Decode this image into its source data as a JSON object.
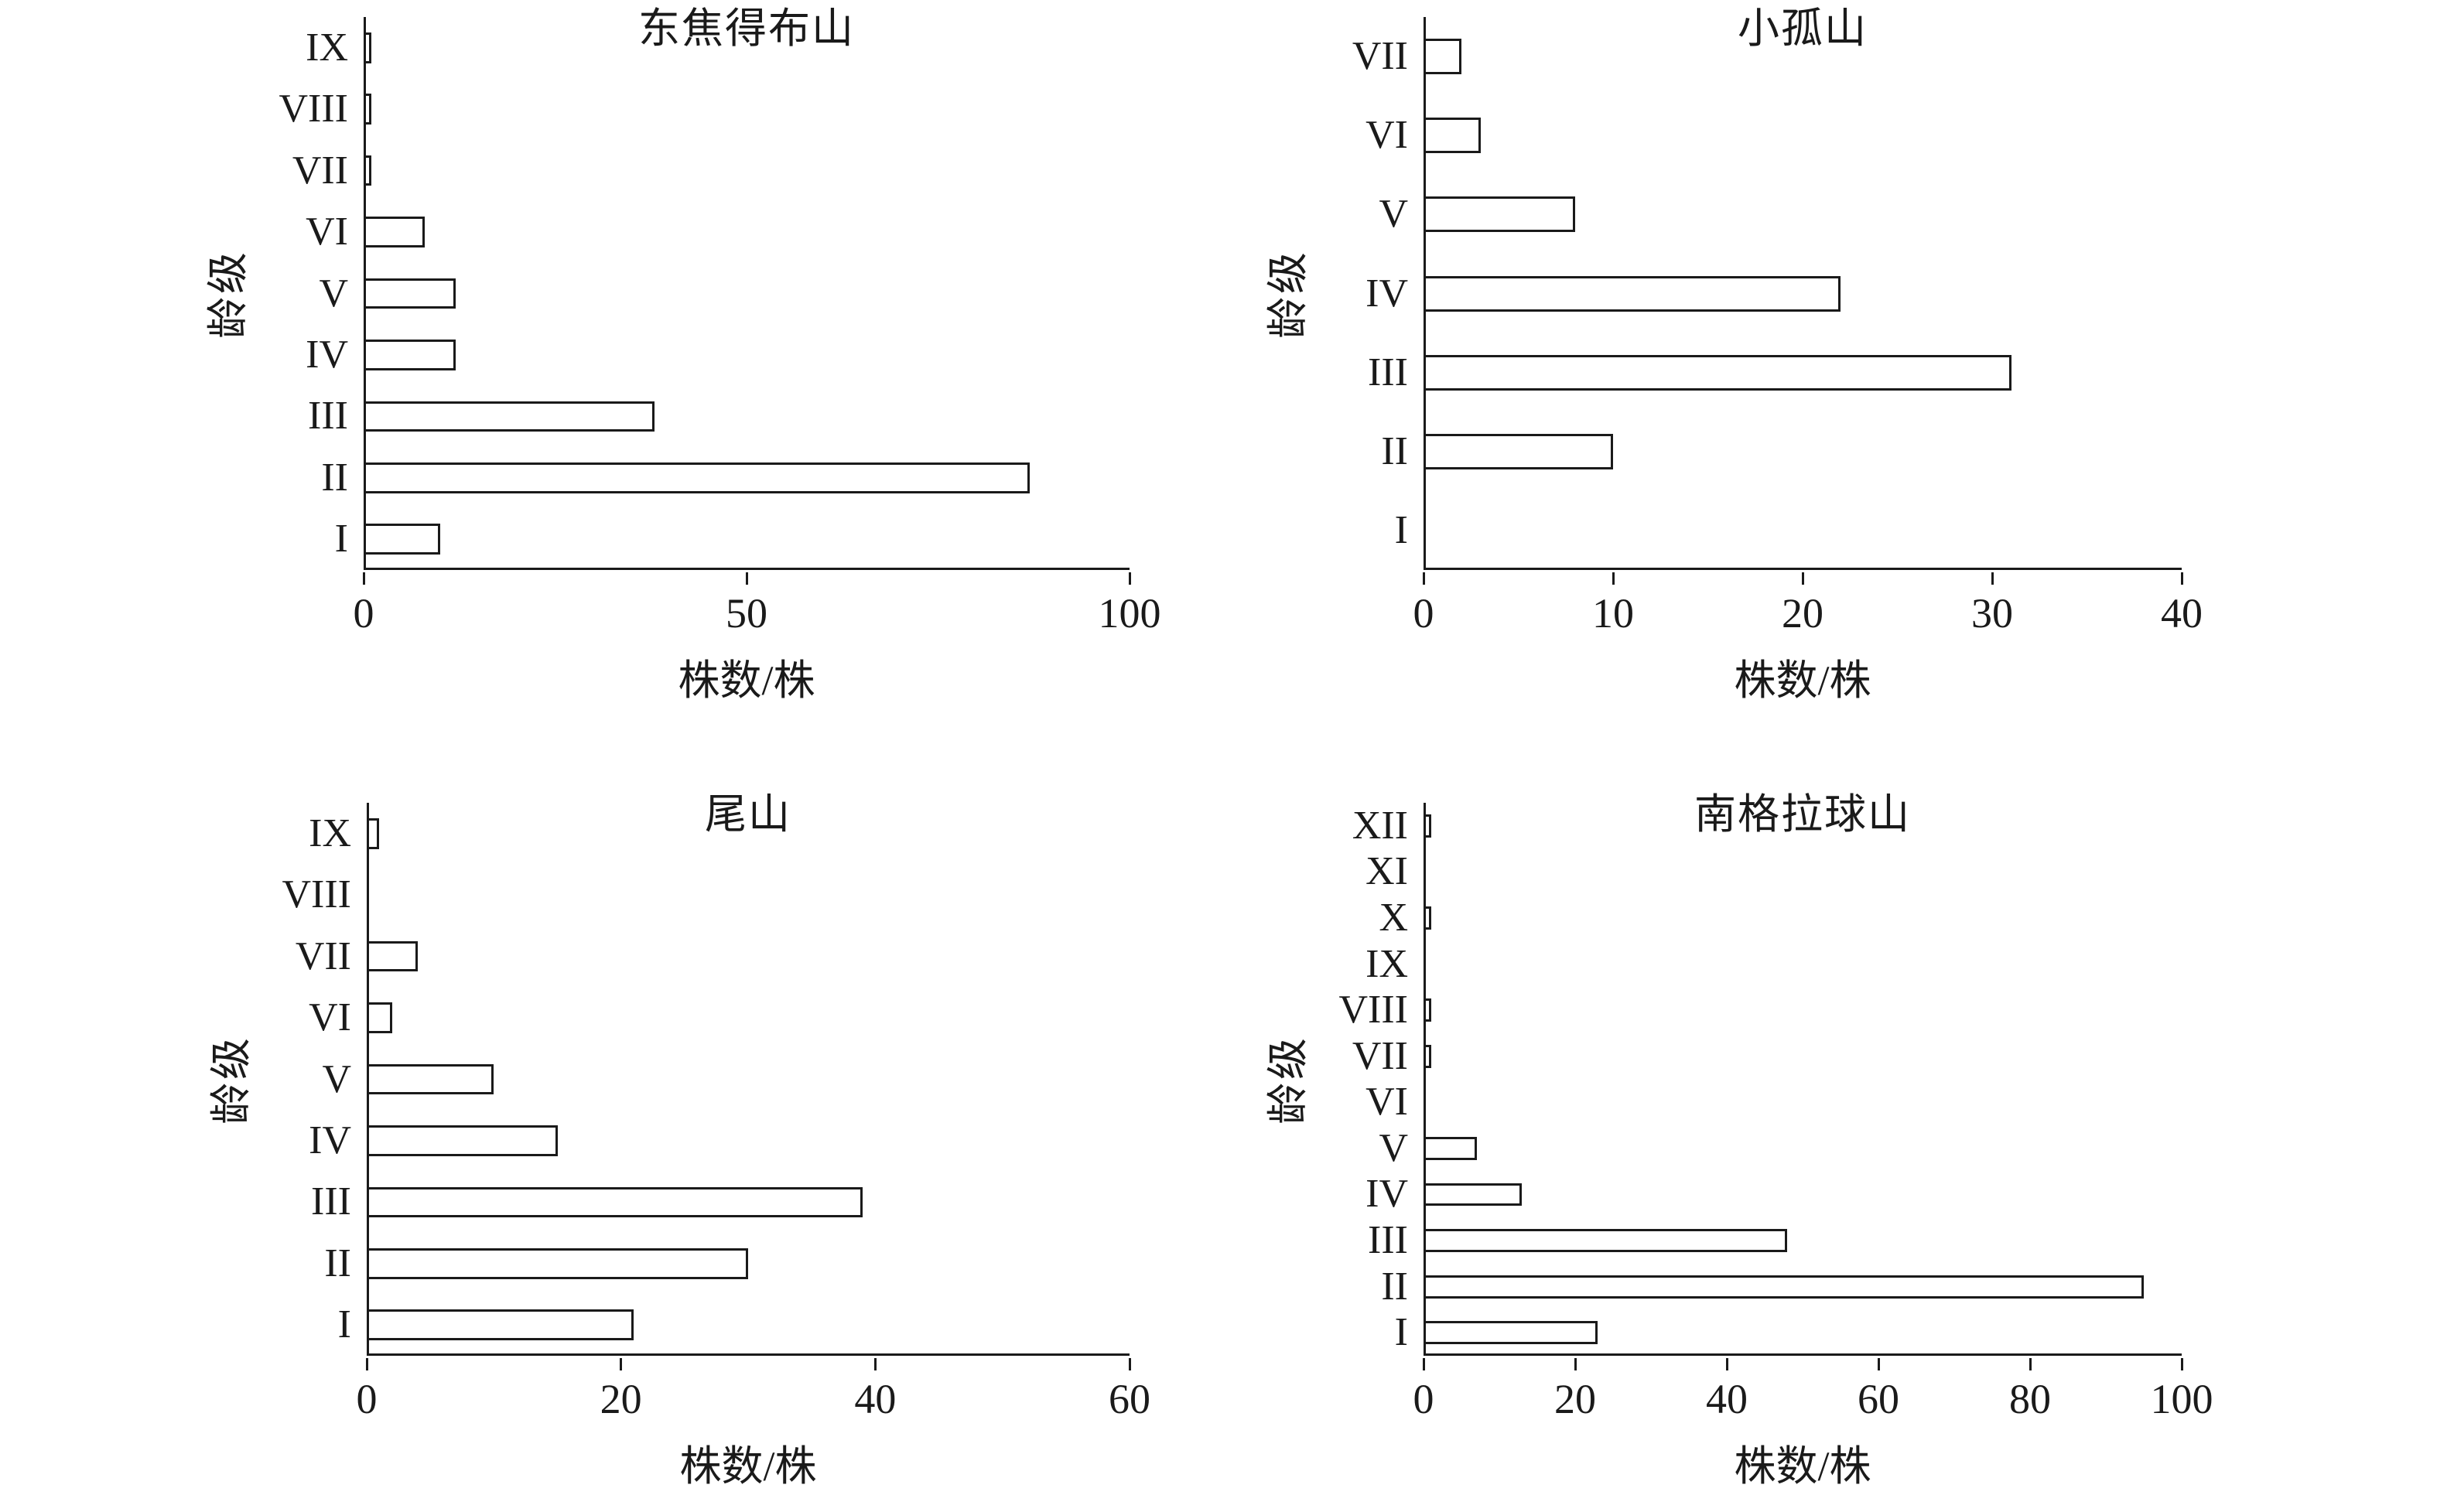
{
  "chart_data": [
    {
      "type": "bar",
      "orientation": "horizontal",
      "title": "东焦得布山",
      "xlabel": "株数/株",
      "ylabel": "龄级",
      "categories": [
        "IX",
        "VIII",
        "VII",
        "VI",
        "V",
        "IV",
        "III",
        "II",
        "I"
      ],
      "values": [
        1,
        1,
        1,
        8,
        12,
        12,
        38,
        87,
        10
      ],
      "xticks": [
        0,
        50,
        100
      ],
      "xlim": [
        0,
        100
      ],
      "grid": false,
      "bar_fill": "#ffffff",
      "bar_stroke": "#1a1a1a"
    },
    {
      "type": "bar",
      "orientation": "horizontal",
      "title": "小孤山",
      "xlabel": "株数/株",
      "ylabel": "龄级",
      "categories": [
        "VII",
        "VI",
        "V",
        "IV",
        "III",
        "II",
        "I"
      ],
      "values": [
        2,
        3,
        8,
        22,
        31,
        10,
        0
      ],
      "xticks": [
        0,
        10,
        20,
        30,
        40
      ],
      "xlim": [
        0,
        40
      ],
      "grid": false,
      "bar_fill": "#ffffff",
      "bar_stroke": "#1a1a1a"
    },
    {
      "type": "bar",
      "orientation": "horizontal",
      "title": "尾山",
      "xlabel": "株数/株",
      "ylabel": "龄级",
      "categories": [
        "IX",
        "VIII",
        "VII",
        "VI",
        "V",
        "IV",
        "III",
        "II",
        "I"
      ],
      "values": [
        1,
        0,
        4,
        2,
        10,
        15,
        39,
        30,
        21
      ],
      "xticks": [
        0,
        20,
        40,
        60
      ],
      "xlim": [
        0,
        60
      ],
      "grid": false,
      "bar_fill": "#ffffff",
      "bar_stroke": "#1a1a1a"
    },
    {
      "type": "bar",
      "orientation": "horizontal",
      "title": "南格拉球山",
      "xlabel": "株数/株",
      "ylabel": "龄级",
      "categories": [
        "XII",
        "XI",
        "X",
        "IX",
        "VIII",
        "VII",
        "VI",
        "V",
        "IV",
        "III",
        "II",
        "I"
      ],
      "values": [
        1,
        0,
        1,
        0,
        1,
        1,
        0,
        7,
        13,
        48,
        95,
        23
      ],
      "xticks": [
        0,
        20,
        40,
        60,
        80,
        100
      ],
      "xlim": [
        0,
        100
      ],
      "grid": false,
      "bar_fill": "#ffffff",
      "bar_stroke": "#1a1a1a"
    }
  ]
}
